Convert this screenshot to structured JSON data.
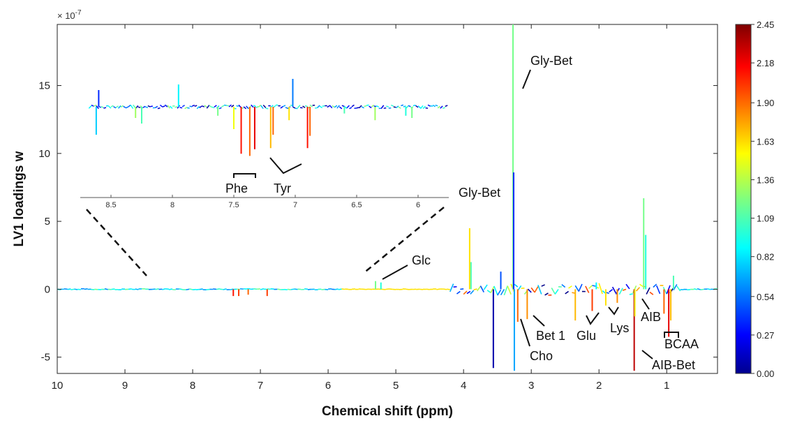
{
  "chart_data": {
    "type": "line",
    "xlabel": "Chemical shift (ppm)",
    "ylabel": "LV1 loadings w",
    "y_scale_label": "× 10",
    "y_scale_exponent": "-7",
    "xlim": [
      10,
      0.25
    ],
    "x_reversed": true,
    "ylim": [
      -6.2,
      19.5
    ],
    "x_ticks": [
      "10",
      "9",
      "8",
      "7",
      "6",
      "5",
      "4",
      "3",
      "2",
      "1"
    ],
    "y_ticks": [
      "-5",
      "0",
      "5",
      "10",
      "15"
    ],
    "colorbar": {
      "colormap": "jet",
      "range": [
        0,
        2.45
      ],
      "ticks": [
        "0.00",
        "0.27",
        "0.54",
        "0.82",
        "1.09",
        "1.36",
        "1.63",
        "1.90",
        "2.18",
        "2.45"
      ]
    },
    "inset": {
      "xlim": [
        8.75,
        5.75
      ],
      "x_ticks": [
        "8.5",
        "8",
        "7.5",
        "7",
        "6.5",
        "6"
      ],
      "zoom_of": [
        8.7,
        5.5
      ]
    },
    "peaks": [
      {
        "x": 3.27,
        "y": 19.5,
        "c": 1.2
      },
      {
        "x": 3.26,
        "y": 8.6,
        "c": 0.4
      },
      {
        "x": 3.25,
        "y": -6.0,
        "c": 0.7
      },
      {
        "x": 3.91,
        "y": 4.5,
        "c": 1.6
      },
      {
        "x": 3.89,
        "y": 2.0,
        "c": 1.1
      },
      {
        "x": 3.56,
        "y": -5.8,
        "c": 0.1
      },
      {
        "x": 3.45,
        "y": 1.3,
        "c": 0.5
      },
      {
        "x": 3.2,
        "y": -2.4,
        "c": 1.9
      },
      {
        "x": 3.06,
        "y": -2.2,
        "c": 1.8
      },
      {
        "x": 2.35,
        "y": -2.3,
        "c": 1.7
      },
      {
        "x": 2.1,
        "y": -1.6,
        "c": 2.0
      },
      {
        "x": 2.04,
        "y": 0.5,
        "c": 0.9
      },
      {
        "x": 1.9,
        "y": -1.2,
        "c": 1.6
      },
      {
        "x": 1.73,
        "y": -1.0,
        "c": 1.8
      },
      {
        "x": 1.48,
        "y": -6.0,
        "c": 2.3
      },
      {
        "x": 1.47,
        "y": -2.0,
        "c": 1.5
      },
      {
        "x": 1.34,
        "y": 6.7,
        "c": 1.2
      },
      {
        "x": 1.31,
        "y": 4.0,
        "c": 1.0
      },
      {
        "x": 1.04,
        "y": -1.8,
        "c": 1.9
      },
      {
        "x": 0.97,
        "y": -3.5,
        "c": 2.2
      },
      {
        "x": 0.94,
        "y": -2.3,
        "c": 1.7
      },
      {
        "x": 0.9,
        "y": 1.0,
        "c": 1.1
      },
      {
        "x": 5.3,
        "y": 0.6,
        "c": 1.2
      },
      {
        "x": 5.22,
        "y": 0.5,
        "c": 1.0
      },
      {
        "x": 7.4,
        "y": -0.5,
        "c": 2.1
      },
      {
        "x": 7.32,
        "y": -0.5,
        "c": 2.0
      },
      {
        "x": 7.18,
        "y": -0.4,
        "c": 1.9
      },
      {
        "x": 6.9,
        "y": -0.5,
        "c": 2.0
      }
    ],
    "inset_peaks": [
      {
        "x": 8.62,
        "y": -2.5,
        "c": 0.8
      },
      {
        "x": 8.6,
        "y": 1.5,
        "c": 0.4
      },
      {
        "x": 8.3,
        "y": -1.0,
        "c": 1.3
      },
      {
        "x": 8.25,
        "y": -1.5,
        "c": 1.1
      },
      {
        "x": 7.95,
        "y": 2.0,
        "c": 0.9
      },
      {
        "x": 7.63,
        "y": -0.8,
        "c": 1.2
      },
      {
        "x": 7.5,
        "y": -2.0,
        "c": 1.5
      },
      {
        "x": 7.44,
        "y": -4.2,
        "c": 2.1
      },
      {
        "x": 7.37,
        "y": -4.4,
        "c": 1.9
      },
      {
        "x": 7.33,
        "y": -3.8,
        "c": 2.2
      },
      {
        "x": 7.2,
        "y": -3.7,
        "c": 1.7
      },
      {
        "x": 7.18,
        "y": -2.5,
        "c": 1.9
      },
      {
        "x": 7.05,
        "y": -1.2,
        "c": 1.6
      },
      {
        "x": 6.9,
        "y": -3.7,
        "c": 2.1
      },
      {
        "x": 6.88,
        "y": -2.6,
        "c": 1.9
      },
      {
        "x": 7.02,
        "y": 2.5,
        "c": 0.6
      },
      {
        "x": 6.6,
        "y": -0.6,
        "c": 1.1
      },
      {
        "x": 6.35,
        "y": -1.2,
        "c": 1.3
      },
      {
        "x": 6.1,
        "y": -0.8,
        "c": 1.0
      },
      {
        "x": 6.05,
        "y": -1.0,
        "c": 1.2
      }
    ],
    "annotations": [
      {
        "label": "Gly-Bet",
        "x": 3.3,
        "y": 17
      },
      {
        "label": "Gly-Bet",
        "x": 3.9,
        "y": 5.5
      },
      {
        "label": "Glc",
        "x": 5.2,
        "y": 2
      },
      {
        "label": "Cho",
        "x": 3.2,
        "y": -5
      },
      {
        "label": "Bet 1",
        "x": 3.06,
        "y": -3.6
      },
      {
        "label": "Glu",
        "x": 2.1,
        "y": -3.4
      },
      {
        "label": "Lys",
        "x": 1.8,
        "y": -3.1
      },
      {
        "label": "AIB",
        "x": 1.4,
        "y": -2.2
      },
      {
        "label": "BCAA",
        "x": 0.97,
        "y": -4.3
      },
      {
        "label": "AIB-Bet",
        "x": 1.48,
        "y": -5.9
      },
      {
        "label": "Phe",
        "x": 7.37,
        "y": -5
      },
      {
        "label": "Tyr",
        "x": 7.05,
        "y": -5
      }
    ]
  }
}
